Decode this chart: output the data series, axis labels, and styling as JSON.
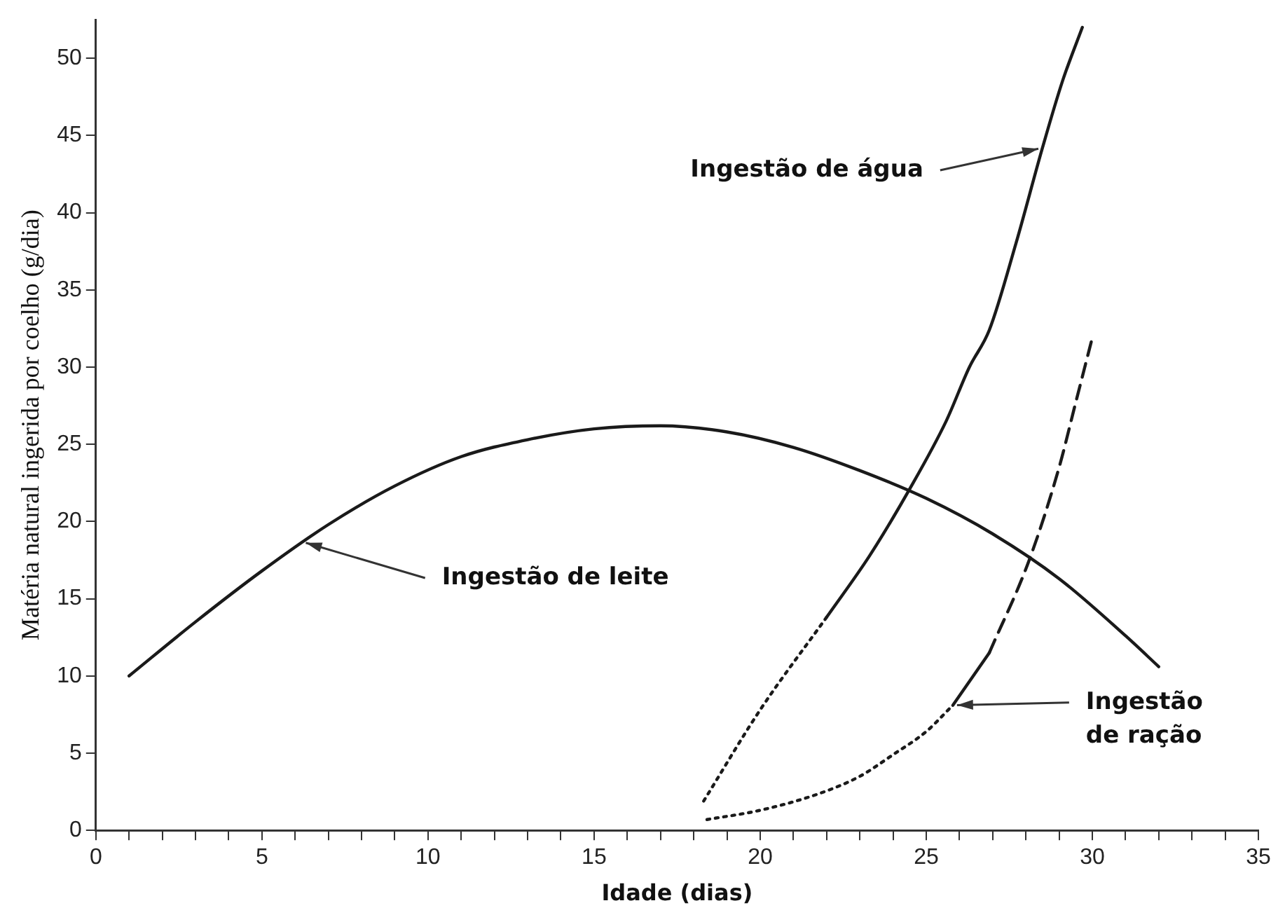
{
  "chart_data": {
    "type": "line",
    "xlabel": "Idade (dias)",
    "ylabel": "Matéria natural ingerida por coelho (g/dia)",
    "xlim": [
      0,
      35
    ],
    "xticks": [
      0,
      {
        "value": 1,
        "label": null
      },
      {
        "value": 2,
        "label": null
      },
      {
        "value": 3,
        "label": null
      },
      {
        "value": 4,
        "label": null
      },
      5,
      {
        "value": 6,
        "label": null
      },
      {
        "value": 7,
        "label": null
      },
      {
        "value": 8,
        "label": null
      },
      {
        "value": 9,
        "label": null
      },
      10,
      {
        "value": 11,
        "label": null
      },
      {
        "value": 12,
        "label": null
      },
      {
        "value": 13,
        "label": null
      },
      {
        "value": 14,
        "label": null
      },
      15,
      {
        "value": 16,
        "label": null
      },
      {
        "value": 17,
        "label": null
      },
      {
        "value": 18,
        "label": null
      },
      {
        "value": 19,
        "label": null
      },
      20,
      {
        "value": 21,
        "label": null
      },
      {
        "value": 22,
        "label": null
      },
      {
        "value": 23,
        "label": null
      },
      {
        "value": 24,
        "label": null
      },
      25,
      {
        "value": 26,
        "label": null
      },
      {
        "value": 27,
        "label": null
      },
      {
        "value": 28,
        "label": null
      },
      {
        "value": 29,
        "label": null
      },
      30,
      {
        "value": 31,
        "label": null
      },
      {
        "value": 32,
        "label": null
      },
      {
        "value": 33,
        "label": null
      },
      {
        "value": 34,
        "label": null
      },
      35
    ],
    "ylim": [
      0,
      52.5
    ],
    "yticks": [
      0,
      5,
      10,
      15,
      20,
      25,
      30,
      35,
      40,
      45,
      50
    ],
    "grid": false,
    "legend": false,
    "marker": "none",
    "series": [
      {
        "color": "#1a1a1a",
        "line_style": "solid",
        "x": [
          1,
          3,
          5,
          7,
          9,
          11,
          13,
          15,
          17,
          19,
          21,
          23,
          25,
          27,
          29,
          31,
          32
        ],
        "values": [
          10,
          13.5,
          16.8,
          19.8,
          22.3,
          24.2,
          25.3,
          26,
          26.2,
          25.8,
          24.8,
          23.3,
          21.5,
          19.2,
          16.3,
          12.6,
          10.6
        ]
      },
      {
        "color": "#1a1a1a",
        "line_style": "dotted",
        "x": [
          18.3,
          20,
          22
        ],
        "values": [
          1.9,
          7.8,
          13.8
        ]
      },
      {
        "color": "#1a1a1a",
        "line_style": "solid",
        "x": [
          22,
          23.3,
          24.5,
          25.6,
          26.3,
          26.9,
          27.7,
          28.5,
          29.1,
          29.7
        ],
        "values": [
          13.8,
          17.8,
          22.1,
          26.5,
          30,
          32.4,
          38,
          44.2,
          48.5,
          52
        ]
      },
      {
        "color": "#1a1a1a",
        "line_style": "dotted",
        "x": [
          18.4,
          20,
          21.8,
          23,
          24,
          25,
          25.8
        ],
        "values": [
          0.7,
          1.3,
          2.4,
          3.5,
          4.9,
          6.4,
          8.1
        ]
      },
      {
        "color": "#1a1a1a",
        "line_style": "solid",
        "x": [
          25.8,
          26.9
        ],
        "values": [
          8.1,
          11.5
        ]
      },
      {
        "color": "#1a1a1a",
        "line_style": "dashed",
        "x": [
          26.9,
          28.1,
          29,
          29.5,
          30
        ],
        "values": [
          11.5,
          17.5,
          23.5,
          27.7,
          31.9
        ]
      }
    ],
    "annotations": [
      {
        "text": "Ingestão de leite",
        "x": 6.2,
        "y": 18.7
      },
      {
        "text": "Ingestão de água",
        "x": 28.5,
        "y": 44.2
      },
      {
        "text": "Ingestão de ração",
        "x": 25.8,
        "y": 8.1
      }
    ]
  }
}
